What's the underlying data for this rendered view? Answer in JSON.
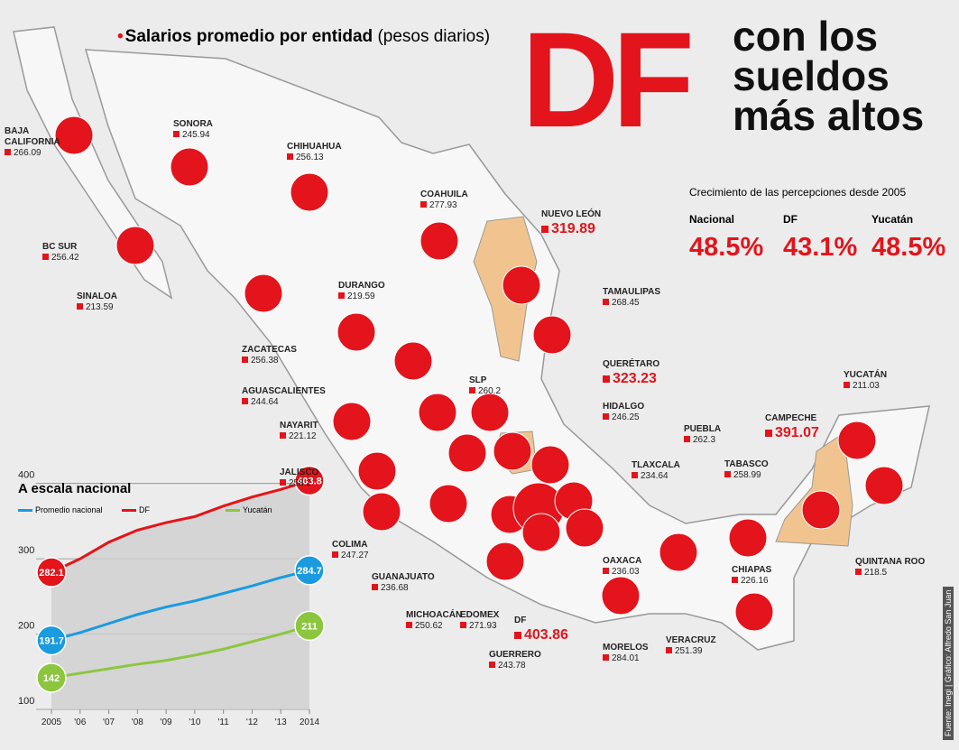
{
  "header": {
    "subtitle_bold": "Salarios promedio por entidad",
    "subtitle_unit": "(pesos diarios)",
    "title_big": "DF",
    "title_rest": "con los sueldos más altos"
  },
  "growth": {
    "title": "Crecimiento de las percepciones desde 2005",
    "items": [
      {
        "name": "Nacional",
        "value": "48.5%"
      },
      {
        "name": "DF",
        "value": "43.1%"
      },
      {
        "name": "Yucatán",
        "value": "48.5%"
      }
    ]
  },
  "states": [
    {
      "name": "BAJA CALIFORNIA",
      "value": 266.09
    },
    {
      "name": "SONORA",
      "value": 245.94
    },
    {
      "name": "CHIHUAHUA",
      "value": 256.13
    },
    {
      "name": "COAHUILA",
      "value": 277.93
    },
    {
      "name": "NUEVO LEÓN",
      "value": 319.89
    },
    {
      "name": "TAMAULIPAS",
      "value": 268.45
    },
    {
      "name": "BC SUR",
      "value": 256.42
    },
    {
      "name": "SINALOA",
      "value": 213.59
    },
    {
      "name": "DURANGO",
      "value": 219.59
    },
    {
      "name": "ZACATECAS",
      "value": 256.38
    },
    {
      "name": "AGUASCALIENTES",
      "value": 244.64
    },
    {
      "name": "SLP",
      "value": 260.2
    },
    {
      "name": "QUERÉTARO",
      "value": 323.23
    },
    {
      "name": "HIDALGO",
      "value": 246.25
    },
    {
      "name": "NAYARIT",
      "value": 221.12
    },
    {
      "name": "JALISCO",
      "value": 258.2
    },
    {
      "name": "COLIMA",
      "value": 247.27
    },
    {
      "name": "GUANAJUATO",
      "value": 236.68
    },
    {
      "name": "MICHOACÁN",
      "value": 250.62
    },
    {
      "name": "EDOMEX",
      "value": 271.93
    },
    {
      "name": "DF",
      "value": 403.86
    },
    {
      "name": "GUERRERO",
      "value": 243.78
    },
    {
      "name": "MORELOS",
      "value": 284.01
    },
    {
      "name": "TLAXCALA",
      "value": 234.64
    },
    {
      "name": "PUEBLA",
      "value": 262.3
    },
    {
      "name": "OAXACA",
      "value": 236.03
    },
    {
      "name": "VERACRUZ",
      "value": 251.39
    },
    {
      "name": "TABASCO",
      "value": 258.99
    },
    {
      "name": "CHIAPAS",
      "value": 226.16
    },
    {
      "name": "CAMPECHE",
      "value": 391.07
    },
    {
      "name": "YUCATÁN",
      "value": 211.03
    },
    {
      "name": "QUINTANA ROO",
      "value": 218.5
    }
  ],
  "chart_data": {
    "type": "line",
    "title": "A escala nacional",
    "categories": [
      "2005",
      "'06",
      "'07",
      "'08",
      "'09",
      "'10",
      "'11",
      "'12",
      "'13",
      "2014"
    ],
    "series": [
      {
        "name": "Promedio nacional",
        "color": "#1a9be0",
        "values": [
          191.7,
          202,
          214,
          226,
          236,
          244,
          254,
          264,
          275,
          284.7
        ]
      },
      {
        "name": "DF",
        "color": "#e3141b",
        "values": [
          282.1,
          300,
          322,
          338,
          348,
          356,
          370,
          382,
          392,
          403.8
        ]
      },
      {
        "name": "Yucatán",
        "color": "#8cc63f",
        "values": [
          142,
          148,
          154,
          160,
          165,
          172,
          180,
          190,
          200,
          211
        ]
      }
    ],
    "ylim": [
      100,
      420
    ],
    "yticks": [
      100,
      200,
      300,
      400
    ],
    "grid": true
  },
  "credit": "Fuente: Inegi | Gráfico: Alfredo San Juan"
}
